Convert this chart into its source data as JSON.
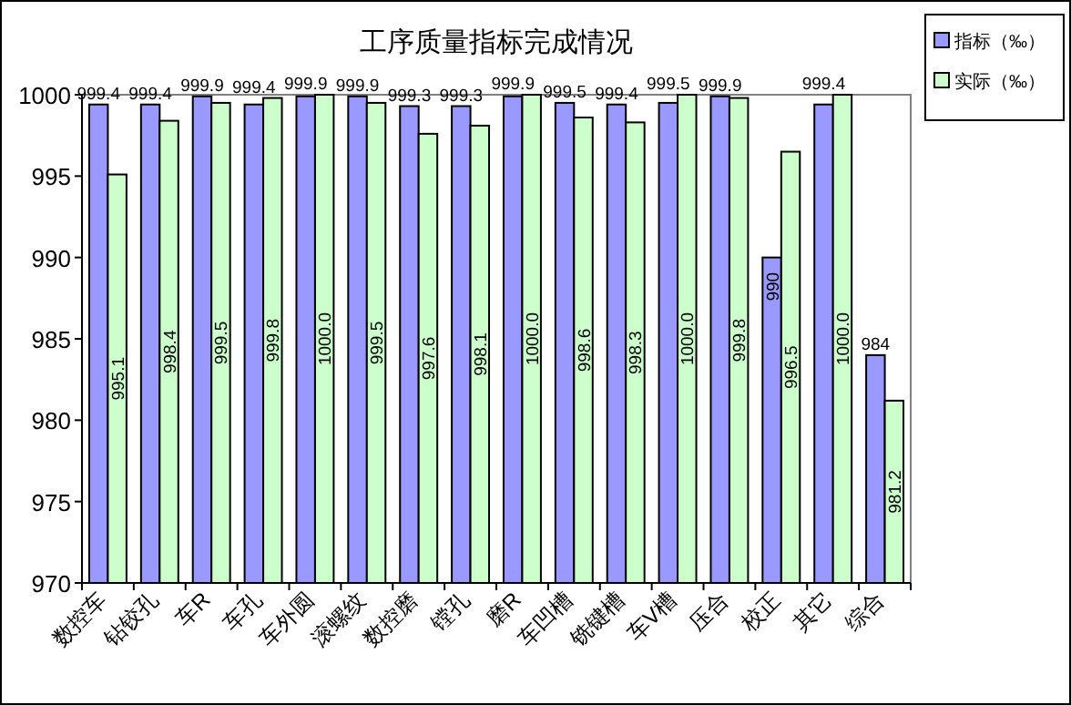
{
  "chart_data": {
    "type": "bar",
    "title": "工序质量指标完成情况",
    "categories": [
      "数控车",
      "钻铰孔",
      "车R",
      "车孔",
      "车外圆",
      "滚螺纹",
      "数控磨",
      "镗孔",
      "磨R",
      "车凹槽",
      "铣键槽",
      "车V槽",
      "压合",
      "校正",
      "其它",
      "综合"
    ],
    "series": [
      {
        "name": "指标（‰）",
        "color": "#9999ff",
        "values": [
          999.4,
          999.4,
          999.9,
          999.4,
          999.9,
          999.9,
          999.3,
          999.3,
          999.9,
          999.5,
          999.4,
          999.5,
          999.9,
          990,
          999.4,
          984
        ],
        "value_labels": [
          "999.4",
          "999.4",
          "999.9",
          "999.4",
          "999.9",
          "999.9",
          "999.3",
          "999.3",
          "999.9",
          "999.5",
          "999.4",
          "999.5",
          "999.9",
          "990",
          "999.4",
          "984"
        ]
      },
      {
        "name": "实际（‰）",
        "color": "#ccffcc",
        "values": [
          995.1,
          998.4,
          999.5,
          999.8,
          1000.0,
          999.5,
          997.6,
          998.1,
          1000.0,
          998.6,
          998.3,
          1000.0,
          999.8,
          996.5,
          1000.0,
          981.2
        ],
        "value_labels": [
          "995.1",
          "998.4",
          "999.5",
          "999.8",
          "1000.0",
          "999.5",
          "997.6",
          "998.1",
          "1000.0",
          "998.6",
          "998.3",
          "1000.0",
          "999.8",
          "996.5",
          "1000.0",
          "981.2"
        ]
      }
    ],
    "ylim": [
      970,
      1000
    ],
    "yticks": [
      970,
      975,
      980,
      985,
      990,
      995,
      1000
    ],
    "grid": false,
    "legend": "right"
  }
}
